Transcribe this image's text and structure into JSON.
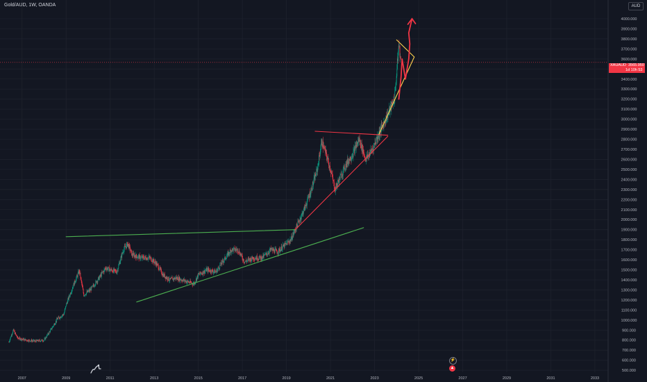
{
  "header": {
    "title": "Gold/AUD, 1W, OANDA",
    "currency": "AUD"
  },
  "price_tag": {
    "symbol": "XAUAUD",
    "price": "3565.950",
    "countdown": "1d 10h 53"
  },
  "icons": {
    "logo": "tradingview-logo-icon",
    "events": [
      "lightning-icon",
      "dividend-flag-icon"
    ]
  },
  "colors": {
    "background": "#131722",
    "grid": "#1e222d",
    "candle_up": "#089981",
    "candle_down": "#f23645",
    "green_trendline": "#4caf50",
    "red_trendline": "#f23645",
    "yellow_trendline": "#ffd54f",
    "arrow": "#f23645"
  },
  "chart_data": {
    "type": "candlestick",
    "title": "Gold/AUD, 1W, OANDA",
    "xlabel": "",
    "ylabel": "",
    "y_axis_ticks": [
      500,
      600,
      700,
      800,
      900,
      1000,
      1100,
      1200,
      1300,
      1400,
      1500,
      1600,
      1700,
      1800,
      1900,
      2000,
      2100,
      2200,
      2300,
      2400,
      2500,
      2600,
      2700,
      2800,
      2900,
      3000,
      3100,
      3200,
      3300,
      3400,
      3500,
      3600,
      3700,
      3800,
      3900,
      4000
    ],
    "y_axis_labels": [
      "500.000",
      "600.000",
      "700.000",
      "800.000",
      "900.000",
      "1000.000",
      "1100.000",
      "1200.000",
      "1300.000",
      "1400.000",
      "1500.000",
      "1600.000",
      "1700.000",
      "1800.000",
      "1900.000",
      "2000.000",
      "2100.000",
      "2200.000",
      "2300.000",
      "2400.000",
      "2500.000",
      "2600.000",
      "2700.000",
      "2800.000",
      "2900.000",
      "3000.000",
      "3100.000",
      "3200.000",
      "3300.000",
      "3400.000",
      "3500.000",
      "3600.000",
      "3700.000",
      "3800.000",
      "3900.000",
      "4000.000"
    ],
    "x_axis_ticks": [
      2007,
      2009,
      2011,
      2013,
      2015,
      2017,
      2019,
      2021,
      2023,
      2025,
      2027,
      2029,
      2031,
      2033
    ],
    "x_axis_labels": [
      "2007",
      "2009",
      "2011",
      "2013",
      "2015",
      "2017",
      "2019",
      "2021",
      "2023",
      "2025",
      "2027",
      "2029",
      "2031",
      "2033"
    ],
    "xlim": [
      2006.0,
      2033.6
    ],
    "ylim": [
      480,
      4090
    ],
    "current_price": 3565.95,
    "grid": true,
    "price_path": [
      [
        2006.4,
        780
      ],
      [
        2006.6,
        900
      ],
      [
        2006.8,
        820
      ],
      [
        2007.2,
        800
      ],
      [
        2007.6,
        790
      ],
      [
        2008.0,
        800
      ],
      [
        2008.3,
        900
      ],
      [
        2008.6,
        1010
      ],
      [
        2008.9,
        1060
      ],
      [
        2009.0,
        1150
      ],
      [
        2009.3,
        1330
      ],
      [
        2009.6,
        1490
      ],
      [
        2009.8,
        1250
      ],
      [
        2010.1,
        1300
      ],
      [
        2010.5,
        1420
      ],
      [
        2010.8,
        1520
      ],
      [
        2011.0,
        1500
      ],
      [
        2011.3,
        1480
      ],
      [
        2011.6,
        1700
      ],
      [
        2011.8,
        1760
      ],
      [
        2012.0,
        1650
      ],
      [
        2012.4,
        1620
      ],
      [
        2012.8,
        1620
      ],
      [
        2013.1,
        1560
      ],
      [
        2013.4,
        1450
      ],
      [
        2013.7,
        1400
      ],
      [
        2014.0,
        1420
      ],
      [
        2014.4,
        1390
      ],
      [
        2014.8,
        1360
      ],
      [
        2015.0,
        1450
      ],
      [
        2015.4,
        1500
      ],
      [
        2015.8,
        1480
      ],
      [
        2016.1,
        1580
      ],
      [
        2016.5,
        1700
      ],
      [
        2016.8,
        1700
      ],
      [
        2017.1,
        1580
      ],
      [
        2017.5,
        1620
      ],
      [
        2017.9,
        1620
      ],
      [
        2018.3,
        1700
      ],
      [
        2018.6,
        1680
      ],
      [
        2018.9,
        1740
      ],
      [
        2019.2,
        1800
      ],
      [
        2019.5,
        1950
      ],
      [
        2019.8,
        2100
      ],
      [
        2020.1,
        2280
      ],
      [
        2020.4,
        2500
      ],
      [
        2020.6,
        2780
      ],
      [
        2020.8,
        2650
      ],
      [
        2021.0,
        2500
      ],
      [
        2021.2,
        2300
      ],
      [
        2021.4,
        2400
      ],
      [
        2021.7,
        2550
      ],
      [
        2022.0,
        2650
      ],
      [
        2022.3,
        2800
      ],
      [
        2022.6,
        2600
      ],
      [
        2022.9,
        2700
      ],
      [
        2023.2,
        2860
      ],
      [
        2023.4,
        2950
      ],
      [
        2023.7,
        3100
      ],
      [
        2023.9,
        3200
      ],
      [
        2024.0,
        3450
      ],
      [
        2024.1,
        3750
      ],
      [
        2024.2,
        3565.95
      ]
    ],
    "drawings": [
      {
        "kind": "line",
        "color": "green",
        "points": [
          [
            2009.0,
            1830
          ],
          [
            2019.4,
            1900
          ]
        ]
      },
      {
        "kind": "line",
        "color": "green",
        "points": [
          [
            2012.2,
            1180
          ],
          [
            2022.5,
            1920
          ]
        ]
      },
      {
        "kind": "line",
        "color": "red",
        "points": [
          [
            2019.4,
            1900
          ],
          [
            2023.6,
            2830
          ]
        ]
      },
      {
        "kind": "line",
        "color": "red",
        "points": [
          [
            2020.3,
            2880
          ],
          [
            2023.6,
            2840
          ]
        ]
      },
      {
        "kind": "line",
        "color": "yellow",
        "points": [
          [
            2023.2,
            2850
          ],
          [
            2024.8,
            3620
          ]
        ]
      },
      {
        "kind": "line",
        "color": "yellow",
        "points": [
          [
            2024.0,
            3790
          ],
          [
            2024.8,
            3620
          ]
        ]
      },
      {
        "kind": "arrow",
        "color": "red",
        "points": [
          [
            2024.1,
            3200
          ],
          [
            2024.2,
            3420
          ],
          [
            2024.25,
            3600
          ],
          [
            2024.4,
            3400
          ],
          [
            2024.55,
            3600
          ],
          [
            2024.6,
            3750
          ],
          [
            2024.55,
            3860
          ],
          [
            2024.7,
            4000
          ]
        ]
      }
    ]
  }
}
